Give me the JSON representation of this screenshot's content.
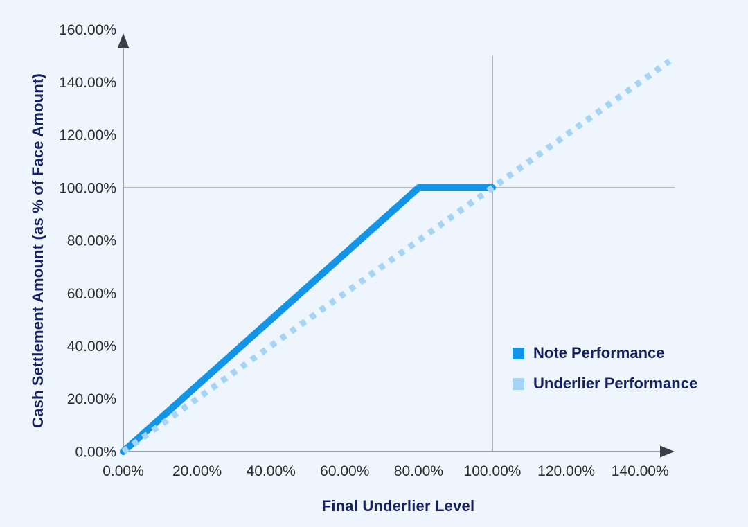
{
  "colors": {
    "background": "#eef5fc",
    "axis_line": "#7f878d",
    "axis_arrow": "#3b3f46",
    "grid_line": "#9aa2a7",
    "tick_text": "#2c2d31",
    "title_text": "#14205f",
    "note_line": "#1295e6",
    "underlier_line": "#a6d4f5"
  },
  "chart_data": {
    "type": "line",
    "title": "",
    "xlabel": "Final Underlier Level",
    "ylabel": "Cash Settlement Amount (as % of Face Amount)",
    "xlim": [
      0,
      150
    ],
    "ylim": [
      0,
      160
    ],
    "grid": "off (single reference lines only)",
    "x_ticks": [
      {
        "value": 0,
        "label": "0.00%"
      },
      {
        "value": 20,
        "label": "20.00%"
      },
      {
        "value": 40,
        "label": "40.00%"
      },
      {
        "value": 60,
        "label": "60.00%"
      },
      {
        "value": 80,
        "label": "80.00%"
      },
      {
        "value": 100,
        "label": "100.00%"
      },
      {
        "value": 120,
        "label": "120.00%"
      },
      {
        "value": 140,
        "label": "140.00%"
      }
    ],
    "y_ticks": [
      {
        "value": 0,
        "label": "0.00%"
      },
      {
        "value": 20,
        "label": "20.00%"
      },
      {
        "value": 40,
        "label": "40.00%"
      },
      {
        "value": 60,
        "label": "60.00%"
      },
      {
        "value": 80,
        "label": "80.00%"
      },
      {
        "value": 100,
        "label": "100.00%"
      },
      {
        "value": 120,
        "label": "120.00%"
      },
      {
        "value": 140,
        "label": "140.00%"
      },
      {
        "value": 160,
        "label": "160.00%"
      }
    ],
    "reference_lines": {
      "vertical_at_x": 100,
      "horizontal_at_y": 100
    },
    "series": [
      {
        "name": "Note Performance",
        "style": "solid",
        "color": "#1295e6",
        "points": [
          [
            0,
            0
          ],
          [
            80,
            100
          ],
          [
            100,
            100
          ]
        ]
      },
      {
        "name": "Underlier Performance",
        "style": "dotted",
        "color": "#a6d4f5",
        "points": [
          [
            0,
            0
          ],
          [
            148,
            148
          ]
        ]
      }
    ],
    "legend_position": "right-middle"
  }
}
